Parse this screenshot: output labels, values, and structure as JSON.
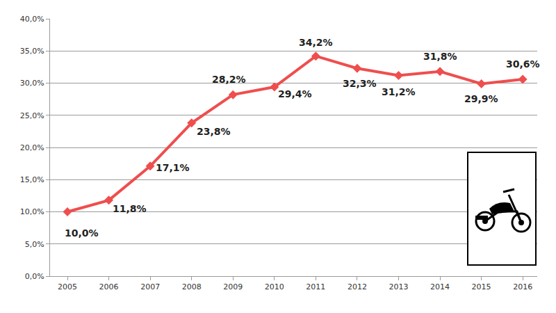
{
  "chart_data": {
    "type": "line",
    "categories": [
      "2005",
      "2006",
      "2007",
      "2008",
      "2009",
      "2010",
      "2011",
      "2012",
      "2013",
      "2014",
      "2015",
      "2016"
    ],
    "values": [
      10.0,
      11.8,
      17.1,
      23.8,
      28.2,
      29.4,
      34.2,
      32.3,
      31.2,
      31.8,
      29.9,
      30.6
    ],
    "value_labels": [
      "10,0%",
      "11,8%",
      "17,1%",
      "23,8%",
      "28,2%",
      "29,4%",
      "34,2%",
      "32,3%",
      "31,2%",
      "31,8%",
      "29,9%",
      "30,6%"
    ],
    "color": "#ef4e4e",
    "marker": "diamond",
    "line_style": "solid",
    "data_labels": true,
    "grid": true,
    "ylim": [
      0,
      40
    ],
    "yticks": [
      {
        "value": 0,
        "label": "0,0%"
      },
      {
        "value": 5,
        "label": "5,0%"
      },
      {
        "value": 10,
        "label": "10,0%"
      },
      {
        "value": 15,
        "label": "15,0%"
      },
      {
        "value": 20,
        "label": "20,0%"
      },
      {
        "value": 25,
        "label": "25,0%"
      },
      {
        "value": 30,
        "label": "30,0%"
      },
      {
        "value": 35,
        "label": "35,0%"
      },
      {
        "value": 40,
        "label": "40,0%"
      }
    ]
  }
}
